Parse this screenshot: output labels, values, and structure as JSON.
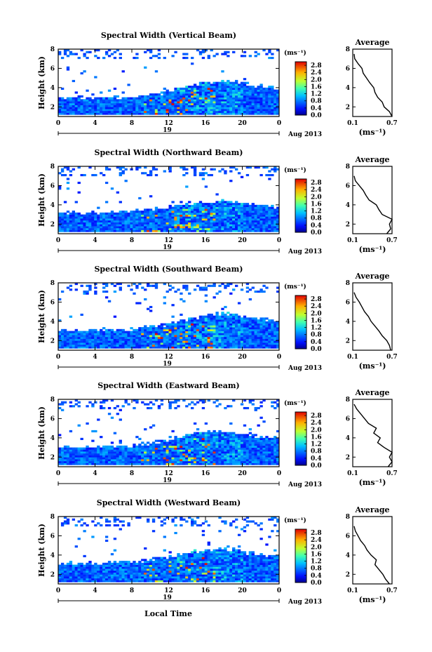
{
  "figure": {
    "x_axis_label": "Local Time",
    "date_label": "Aug 2013",
    "day_label": "19",
    "units_label": "(ms⁻¹)"
  },
  "chart_data": [
    {
      "type": "heatmap",
      "title": "Spectral Width (Vertical Beam)",
      "ylabel": "Height (km)",
      "xlabel": "Local Time",
      "x_ticks": [
        "0",
        "4",
        "8",
        "12",
        "16",
        "20",
        "0"
      ],
      "y_ticks": [
        "2",
        "4",
        "6",
        "8"
      ],
      "xlim": [
        0,
        24
      ],
      "ylim": [
        1,
        8
      ],
      "colorbar": {
        "unit": "(ms⁻¹)",
        "ticks": [
          "0.0",
          "0.4",
          "0.8",
          "1.2",
          "1.6",
          "2.0",
          "2.4",
          "2.8"
        ],
        "range": [
          0,
          3.0
        ]
      },
      "low_layer_top_km": [
        [
          0,
          3.0
        ],
        [
          8,
          3.0
        ],
        [
          12,
          3.6
        ],
        [
          15,
          4.3
        ],
        [
          18,
          4.8
        ],
        [
          21,
          4.3
        ],
        [
          24,
          3.9
        ]
      ],
      "average_profile": {
        "title": "Average",
        "xlabel": "(ms⁻¹)",
        "x_ticks": [
          "0.1",
          "0.7"
        ],
        "y_ticks": [
          "2",
          "4",
          "6",
          "8"
        ],
        "xlim": [
          0.1,
          0.7
        ],
        "ylim": [
          1,
          8
        ],
        "height": [
          1.0,
          1.5,
          2.0,
          2.5,
          3.0,
          3.5,
          4.0,
          4.5,
          5.0,
          5.5,
          6.0,
          6.5,
          7.0,
          7.5
        ],
        "width": [
          0.7,
          0.66,
          0.58,
          0.55,
          0.48,
          0.44,
          0.42,
          0.36,
          0.31,
          0.26,
          0.24,
          0.18,
          0.13,
          0.12
        ]
      }
    },
    {
      "type": "heatmap",
      "title": "Spectral Width (Northward Beam)",
      "ylabel": "Height (km)",
      "xlabel": "Local Time",
      "x_ticks": [
        "0",
        "4",
        "8",
        "12",
        "16",
        "20",
        "0"
      ],
      "y_ticks": [
        "2",
        "4",
        "6",
        "8"
      ],
      "xlim": [
        0,
        24
      ],
      "ylim": [
        1,
        8
      ],
      "colorbar": {
        "unit": "(ms⁻¹)",
        "ticks": [
          "0.0",
          "0.4",
          "0.8",
          "1.2",
          "1.6",
          "2.0",
          "2.4",
          "2.8"
        ],
        "range": [
          0,
          3.0
        ]
      },
      "low_layer_top_km": [
        [
          0,
          3.2
        ],
        [
          8,
          3.3
        ],
        [
          12,
          3.8
        ],
        [
          15,
          4.2
        ],
        [
          18,
          4.4
        ],
        [
          21,
          4.1
        ],
        [
          24,
          3.8
        ]
      ],
      "average_profile": {
        "title": "Average",
        "xlabel": "(ms⁻¹)",
        "x_ticks": [
          "0.1",
          "0.7"
        ],
        "y_ticks": [
          "2",
          "4",
          "6",
          "8"
        ],
        "xlim": [
          0.1,
          0.7
        ],
        "ylim": [
          1,
          8
        ],
        "height": [
          1.0,
          1.5,
          2.0,
          2.5,
          3.0,
          3.5,
          4.0,
          4.5,
          5.0,
          5.5,
          6.0,
          6.5,
          7.0
        ],
        "width": [
          0.62,
          0.68,
          0.66,
          0.7,
          0.55,
          0.5,
          0.46,
          0.35,
          0.3,
          0.26,
          0.2,
          0.14,
          0.12
        ]
      }
    },
    {
      "type": "heatmap",
      "title": "Spectral Width (Southward Beam)",
      "ylabel": "Height (km)",
      "xlabel": "Local Time",
      "x_ticks": [
        "0",
        "4",
        "8",
        "12",
        "16",
        "20",
        "0"
      ],
      "y_ticks": [
        "2",
        "4",
        "6",
        "8"
      ],
      "xlim": [
        0,
        24
      ],
      "ylim": [
        1,
        8
      ],
      "colorbar": {
        "unit": "(ms⁻¹)",
        "ticks": [
          "0.0",
          "0.4",
          "0.8",
          "1.2",
          "1.6",
          "2.0",
          "2.4",
          "2.8"
        ],
        "range": [
          0,
          3.0
        ]
      },
      "low_layer_top_km": [
        [
          0,
          3.0
        ],
        [
          8,
          3.2
        ],
        [
          12,
          3.7
        ],
        [
          15,
          4.4
        ],
        [
          18,
          4.9
        ],
        [
          21,
          4.4
        ],
        [
          24,
          4.0
        ]
      ],
      "average_profile": {
        "title": "Average",
        "xlabel": "(ms⁻¹)",
        "x_ticks": [
          "0.1",
          "0.7"
        ],
        "y_ticks": [
          "2",
          "4",
          "6",
          "8"
        ],
        "xlim": [
          0.1,
          0.7
        ],
        "ylim": [
          1,
          8
        ],
        "height": [
          1.0,
          1.5,
          2.0,
          2.5,
          3.0,
          3.5,
          4.0,
          4.5,
          5.0,
          5.5,
          6.0,
          6.5,
          7.0
        ],
        "width": [
          0.68,
          0.66,
          0.62,
          0.55,
          0.5,
          0.44,
          0.38,
          0.34,
          0.28,
          0.24,
          0.2,
          0.15,
          0.12
        ]
      }
    },
    {
      "type": "heatmap",
      "title": "Spectral Width (Eastward Beam)",
      "ylabel": "Height (km)",
      "xlabel": "Local Time",
      "x_ticks": [
        "0",
        "4",
        "8",
        "12",
        "16",
        "20",
        "0"
      ],
      "y_ticks": [
        "2",
        "4",
        "6",
        "8"
      ],
      "xlim": [
        0,
        24
      ],
      "ylim": [
        1,
        8
      ],
      "colorbar": {
        "unit": "(ms⁻¹)",
        "ticks": [
          "0.0",
          "0.4",
          "0.8",
          "1.2",
          "1.6",
          "2.0",
          "2.4",
          "2.8"
        ],
        "range": [
          0,
          3.0
        ]
      },
      "low_layer_top_km": [
        [
          0,
          3.1
        ],
        [
          8,
          3.2
        ],
        [
          12,
          3.8
        ],
        [
          15,
          4.5
        ],
        [
          18,
          4.8
        ],
        [
          21,
          4.3
        ],
        [
          24,
          3.9
        ]
      ],
      "average_profile": {
        "title": "Average",
        "xlabel": "(ms⁻¹)",
        "x_ticks": [
          "0.1",
          "0.7"
        ],
        "y_ticks": [
          "2",
          "4",
          "6",
          "8"
        ],
        "xlim": [
          0.1,
          0.7
        ],
        "ylim": [
          1,
          8
        ],
        "height": [
          1.0,
          1.5,
          2.0,
          2.5,
          3.0,
          3.5,
          4.0,
          4.5,
          5.0,
          5.5,
          6.0,
          6.5,
          7.0,
          7.5
        ],
        "width": [
          0.64,
          0.7,
          0.66,
          0.7,
          0.58,
          0.48,
          0.52,
          0.42,
          0.46,
          0.34,
          0.28,
          0.22,
          0.16,
          0.12
        ]
      }
    },
    {
      "type": "heatmap",
      "title": "Spectral Width (Westward Beam)",
      "ylabel": "Height (km)",
      "xlabel": "Local Time",
      "x_ticks": [
        "0",
        "4",
        "8",
        "12",
        "16",
        "20",
        "0"
      ],
      "y_ticks": [
        "2",
        "4",
        "6",
        "8"
      ],
      "xlim": [
        0,
        24
      ],
      "ylim": [
        1,
        8
      ],
      "colorbar": {
        "unit": "(ms⁻¹)",
        "ticks": [
          "0.0",
          "0.4",
          "0.8",
          "1.2",
          "1.6",
          "2.0",
          "2.4",
          "2.8"
        ],
        "range": [
          0,
          3.0
        ]
      },
      "low_layer_top_km": [
        [
          0,
          3.1
        ],
        [
          8,
          3.3
        ],
        [
          12,
          3.8
        ],
        [
          15,
          4.4
        ],
        [
          18,
          4.7
        ],
        [
          21,
          4.2
        ],
        [
          24,
          3.9
        ]
      ],
      "average_profile": {
        "title": "Average",
        "xlabel": "(ms⁻¹)",
        "x_ticks": [
          "0.1",
          "0.7"
        ],
        "y_ticks": [
          "2",
          "4",
          "6",
          "8"
        ],
        "xlim": [
          0.1,
          0.7
        ],
        "ylim": [
          1,
          8
        ],
        "height": [
          1.0,
          1.5,
          2.0,
          2.5,
          3.0,
          3.5,
          4.0,
          4.5,
          5.0,
          5.5,
          6.0,
          6.5,
          7.0
        ],
        "width": [
          0.66,
          0.6,
          0.56,
          0.5,
          0.44,
          0.46,
          0.38,
          0.32,
          0.28,
          0.22,
          0.18,
          0.14,
          0.12
        ]
      }
    }
  ]
}
